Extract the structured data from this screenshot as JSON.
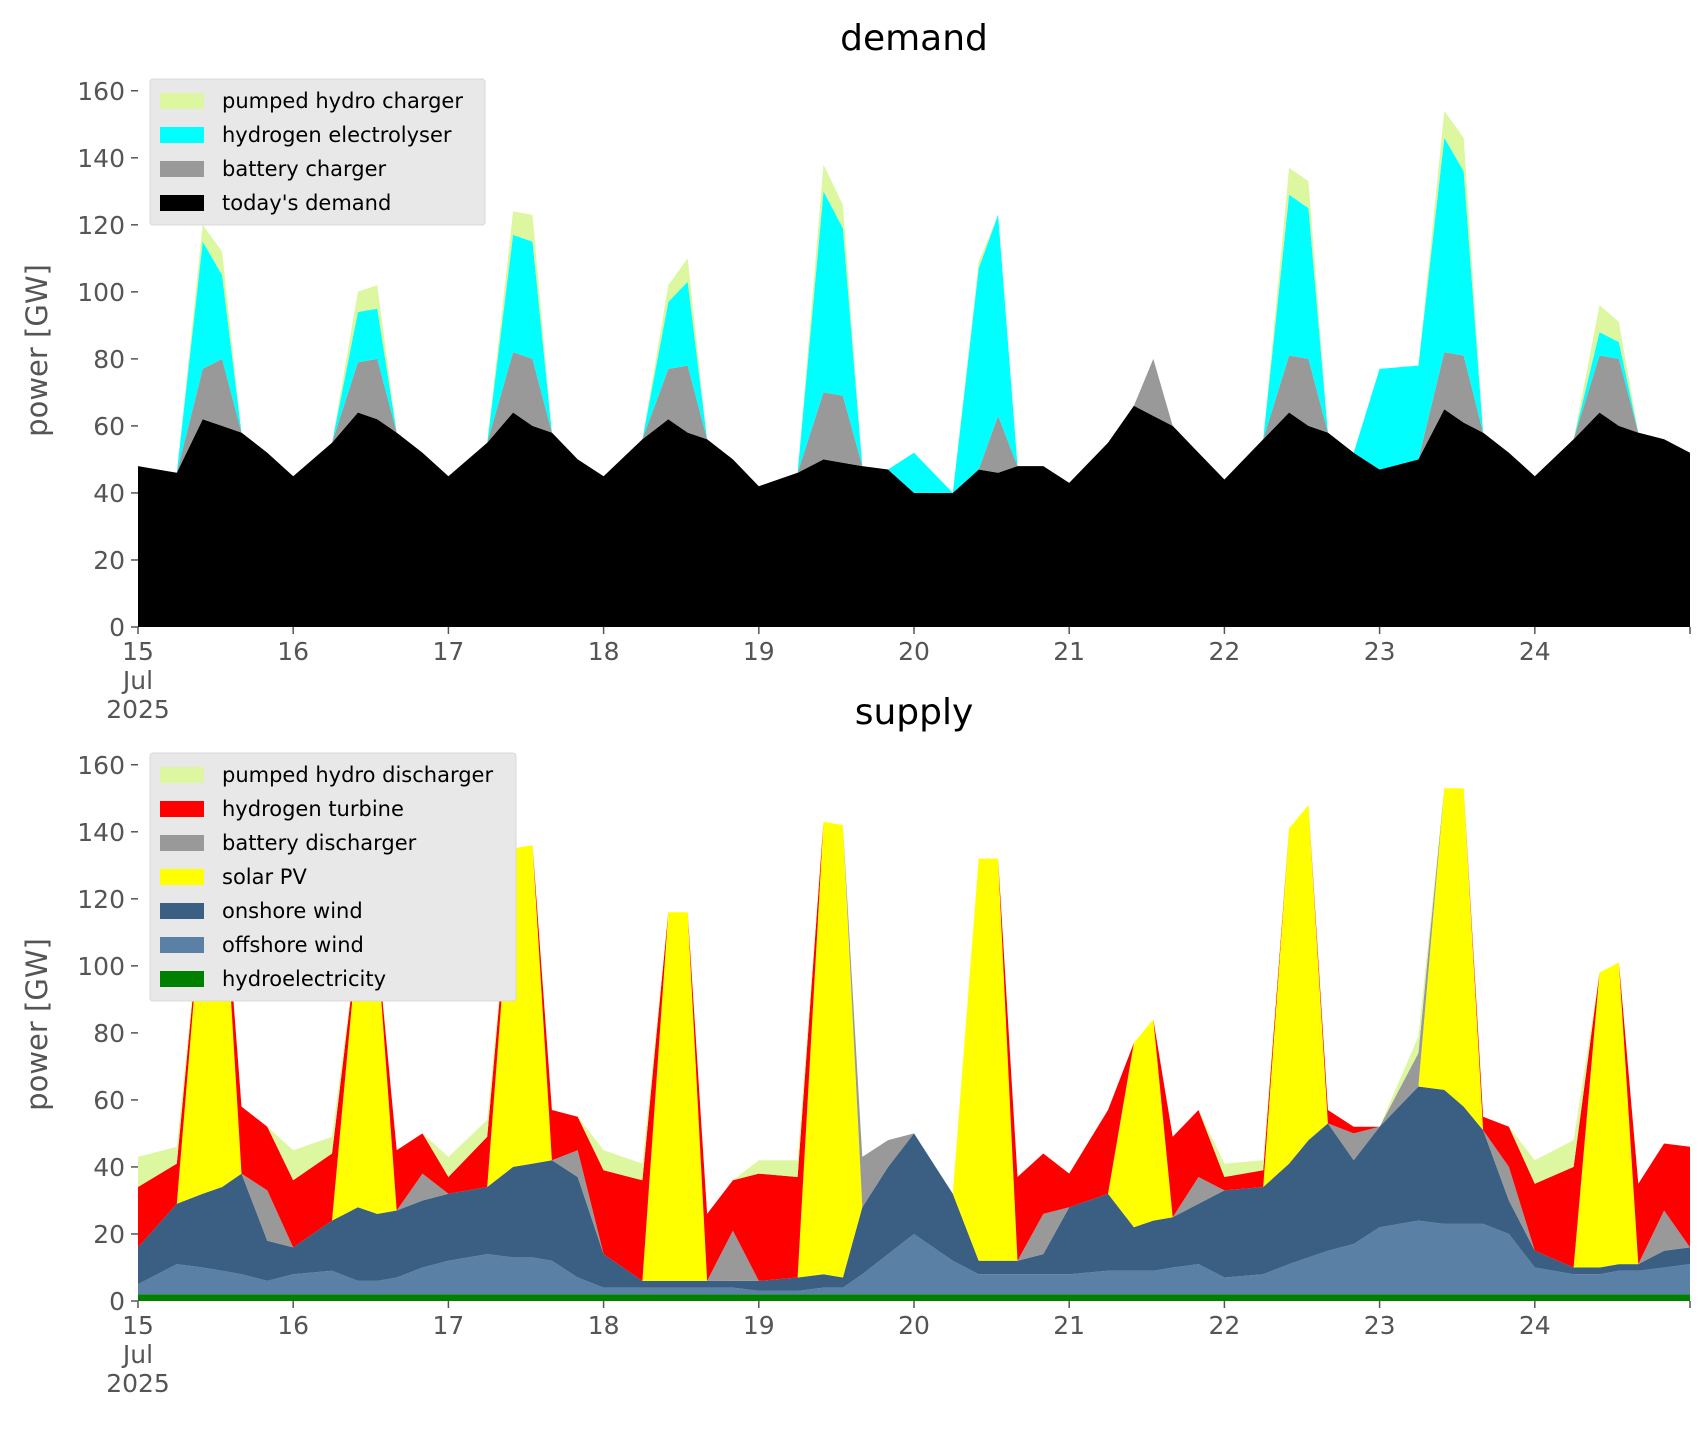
{
  "chart_data": [
    {
      "type": "area",
      "stacked": true,
      "title": "demand",
      "ylabel": "power [GW]",
      "xlabel": "",
      "ylim": [
        0,
        165
      ],
      "yticks": [
        0,
        20,
        40,
        60,
        80,
        100,
        120,
        140,
        160
      ],
      "xlim": [
        "2025-07-15 00:00",
        "2025-07-25 00:00"
      ],
      "xticks": [
        {
          "date": "2025-07-15",
          "lines": [
            "15",
            "Jul",
            "2025"
          ]
        },
        {
          "date": "2025-07-16",
          "lines": [
            "16"
          ]
        },
        {
          "date": "2025-07-17",
          "lines": [
            "17"
          ]
        },
        {
          "date": "2025-07-18",
          "lines": [
            "18"
          ]
        },
        {
          "date": "2025-07-19",
          "lines": [
            "19"
          ]
        },
        {
          "date": "2025-07-20",
          "lines": [
            "20"
          ]
        },
        {
          "date": "2025-07-21",
          "lines": [
            "21"
          ]
        },
        {
          "date": "2025-07-22",
          "lines": [
            "22"
          ]
        },
        {
          "date": "2025-07-23",
          "lines": [
            "23"
          ]
        },
        {
          "date": "2025-07-24",
          "lines": [
            "24"
          ]
        }
      ],
      "grid": false,
      "legend_position": "top-left",
      "x": [
        "2025-07-15 00:00",
        "2025-07-15 06:00",
        "2025-07-15 10:00",
        "2025-07-15 13:00",
        "2025-07-15 16:00",
        "2025-07-15 20:00",
        "2025-07-16 00:00",
        "2025-07-16 06:00",
        "2025-07-16 10:00",
        "2025-07-16 13:00",
        "2025-07-16 16:00",
        "2025-07-16 20:00",
        "2025-07-17 00:00",
        "2025-07-17 06:00",
        "2025-07-17 10:00",
        "2025-07-17 13:00",
        "2025-07-17 16:00",
        "2025-07-17 20:00",
        "2025-07-18 00:00",
        "2025-07-18 06:00",
        "2025-07-18 10:00",
        "2025-07-18 13:00",
        "2025-07-18 16:00",
        "2025-07-18 20:00",
        "2025-07-19 00:00",
        "2025-07-19 06:00",
        "2025-07-19 10:00",
        "2025-07-19 13:00",
        "2025-07-19 16:00",
        "2025-07-19 20:00",
        "2025-07-20 00:00",
        "2025-07-20 06:00",
        "2025-07-20 10:00",
        "2025-07-20 13:00",
        "2025-07-20 16:00",
        "2025-07-20 20:00",
        "2025-07-21 00:00",
        "2025-07-21 06:00",
        "2025-07-21 10:00",
        "2025-07-21 13:00",
        "2025-07-21 16:00",
        "2025-07-21 20:00",
        "2025-07-22 00:00",
        "2025-07-22 06:00",
        "2025-07-22 10:00",
        "2025-07-22 13:00",
        "2025-07-22 16:00",
        "2025-07-22 20:00",
        "2025-07-23 00:00",
        "2025-07-23 06:00",
        "2025-07-23 10:00",
        "2025-07-23 13:00",
        "2025-07-23 16:00",
        "2025-07-23 20:00",
        "2025-07-24 00:00",
        "2025-07-24 06:00",
        "2025-07-24 10:00",
        "2025-07-24 13:00",
        "2025-07-24 16:00",
        "2025-07-24 20:00",
        "2025-07-25 00:00"
      ],
      "series": [
        {
          "name": "today's demand",
          "color": "#000000",
          "values": [
            48,
            46,
            62,
            60,
            58,
            52,
            45,
            55,
            64,
            62,
            58,
            52,
            45,
            55,
            64,
            60,
            58,
            50,
            45,
            56,
            62,
            58,
            56,
            50,
            42,
            46,
            50,
            49,
            48,
            47,
            40,
            40,
            47,
            46,
            48,
            48,
            43,
            55,
            66,
            63,
            60,
            52,
            44,
            56,
            64,
            60,
            58,
            52,
            47,
            50,
            65,
            61,
            58,
            52,
            45,
            56,
            64,
            60,
            58,
            56,
            52
          ]
        },
        {
          "name": "battery charger",
          "color": "#999999",
          "values": [
            0,
            0,
            15,
            20,
            0,
            0,
            0,
            0,
            15,
            18,
            0,
            0,
            0,
            0,
            18,
            20,
            0,
            0,
            0,
            0,
            15,
            20,
            0,
            0,
            0,
            0,
            20,
            20,
            0,
            0,
            0,
            0,
            0,
            17,
            0,
            0,
            0,
            0,
            0,
            17,
            0,
            0,
            0,
            0,
            17,
            20,
            0,
            0,
            0,
            0,
            17,
            20,
            0,
            0,
            0,
            0,
            17,
            20,
            0,
            0,
            0
          ]
        },
        {
          "name": "hydrogen electrolyser",
          "color": "#00ffff",
          "values": [
            0,
            0,
            38,
            25,
            0,
            0,
            0,
            0,
            15,
            15,
            0,
            0,
            0,
            0,
            35,
            35,
            0,
            0,
            0,
            0,
            20,
            25,
            0,
            0,
            0,
            0,
            60,
            50,
            0,
            0,
            12,
            0,
            60,
            60,
            0,
            0,
            0,
            0,
            0,
            0,
            0,
            0,
            0,
            0,
            48,
            45,
            0,
            0,
            30,
            28,
            64,
            55,
            0,
            0,
            0,
            0,
            7,
            5,
            0,
            0,
            0
          ]
        },
        {
          "name": "pumped hydro charger",
          "color": "#ddf7a1",
          "values": [
            0,
            0,
            5,
            7,
            0,
            0,
            0,
            0,
            6,
            7,
            0,
            0,
            0,
            0,
            7,
            8,
            0,
            0,
            0,
            0,
            5,
            7,
            0,
            0,
            0,
            0,
            8,
            7,
            0,
            0,
            0,
            0,
            2,
            0,
            0,
            0,
            0,
            0,
            0,
            0,
            0,
            0,
            0,
            0,
            8,
            8,
            0,
            0,
            0,
            0,
            8,
            10,
            0,
            0,
            0,
            0,
            8,
            6,
            0,
            0,
            0
          ]
        }
      ]
    },
    {
      "type": "area",
      "stacked": true,
      "title": "supply",
      "ylabel": "power [GW]",
      "xlabel": "",
      "ylim": [
        0,
        165
      ],
      "yticks": [
        0,
        20,
        40,
        60,
        80,
        100,
        120,
        140,
        160
      ],
      "xlim": [
        "2025-07-15 00:00",
        "2025-07-25 00:00"
      ],
      "xticks": [
        {
          "date": "2025-07-15",
          "lines": [
            "15",
            "Jul",
            "2025"
          ]
        },
        {
          "date": "2025-07-16",
          "lines": [
            "16"
          ]
        },
        {
          "date": "2025-07-17",
          "lines": [
            "17"
          ]
        },
        {
          "date": "2025-07-18",
          "lines": [
            "18"
          ]
        },
        {
          "date": "2025-07-19",
          "lines": [
            "19"
          ]
        },
        {
          "date": "2025-07-20",
          "lines": [
            "20"
          ]
        },
        {
          "date": "2025-07-21",
          "lines": [
            "21"
          ]
        },
        {
          "date": "2025-07-22",
          "lines": [
            "22"
          ]
        },
        {
          "date": "2025-07-23",
          "lines": [
            "23"
          ]
        },
        {
          "date": "2025-07-24",
          "lines": [
            "24"
          ]
        }
      ],
      "grid": false,
      "legend_position": "top-left",
      "x": [
        "2025-07-15 00:00",
        "2025-07-15 06:00",
        "2025-07-15 10:00",
        "2025-07-15 13:00",
        "2025-07-15 16:00",
        "2025-07-15 20:00",
        "2025-07-16 00:00",
        "2025-07-16 06:00",
        "2025-07-16 10:00",
        "2025-07-16 13:00",
        "2025-07-16 16:00",
        "2025-07-16 20:00",
        "2025-07-17 00:00",
        "2025-07-17 06:00",
        "2025-07-17 10:00",
        "2025-07-17 13:00",
        "2025-07-17 16:00",
        "2025-07-17 20:00",
        "2025-07-18 00:00",
        "2025-07-18 06:00",
        "2025-07-18 10:00",
        "2025-07-18 13:00",
        "2025-07-18 16:00",
        "2025-07-18 20:00",
        "2025-07-19 00:00",
        "2025-07-19 06:00",
        "2025-07-19 10:00",
        "2025-07-19 13:00",
        "2025-07-19 16:00",
        "2025-07-19 20:00",
        "2025-07-20 00:00",
        "2025-07-20 06:00",
        "2025-07-20 10:00",
        "2025-07-20 13:00",
        "2025-07-20 16:00",
        "2025-07-20 20:00",
        "2025-07-21 00:00",
        "2025-07-21 06:00",
        "2025-07-21 10:00",
        "2025-07-21 13:00",
        "2025-07-21 16:00",
        "2025-07-21 20:00",
        "2025-07-22 00:00",
        "2025-07-22 06:00",
        "2025-07-22 10:00",
        "2025-07-22 13:00",
        "2025-07-22 16:00",
        "2025-07-22 20:00",
        "2025-07-23 00:00",
        "2025-07-23 06:00",
        "2025-07-23 10:00",
        "2025-07-23 13:00",
        "2025-07-23 16:00",
        "2025-07-23 20:00",
        "2025-07-24 00:00",
        "2025-07-24 06:00",
        "2025-07-24 10:00",
        "2025-07-24 13:00",
        "2025-07-24 16:00",
        "2025-07-24 20:00",
        "2025-07-25 00:00"
      ],
      "series": [
        {
          "name": "hydroelectricity",
          "color": "#008000",
          "values": [
            2,
            2,
            2,
            2,
            2,
            2,
            2,
            2,
            2,
            2,
            2,
            2,
            2,
            2,
            2,
            2,
            2,
            2,
            2,
            2,
            2,
            2,
            2,
            2,
            2,
            2,
            2,
            2,
            2,
            2,
            2,
            2,
            2,
            2,
            2,
            2,
            2,
            2,
            2,
            2,
            2,
            2,
            2,
            2,
            2,
            2,
            2,
            2,
            2,
            2,
            2,
            2,
            2,
            2,
            2,
            2,
            2,
            2,
            2,
            2,
            2
          ]
        },
        {
          "name": "offshore wind",
          "color": "#5b80a5",
          "values": [
            3,
            9,
            8,
            7,
            6,
            4,
            6,
            7,
            4,
            4,
            5,
            8,
            10,
            12,
            11,
            11,
            10,
            5,
            2,
            2,
            2,
            2,
            2,
            2,
            1,
            1,
            2,
            2,
            6,
            12,
            18,
            10,
            6,
            6,
            6,
            6,
            6,
            7,
            7,
            7,
            8,
            9,
            5,
            6,
            9,
            11,
            13,
            15,
            20,
            22,
            21,
            21,
            21,
            18,
            8,
            6,
            6,
            7,
            7,
            8,
            9
          ]
        },
        {
          "name": "onshore wind",
          "color": "#3a5f82",
          "values": [
            11,
            18,
            22,
            25,
            30,
            12,
            8,
            15,
            22,
            20,
            20,
            20,
            20,
            20,
            27,
            28,
            30,
            30,
            10,
            2,
            2,
            2,
            2,
            2,
            3,
            4,
            4,
            3,
            20,
            26,
            30,
            20,
            4,
            4,
            4,
            6,
            20,
            23,
            13,
            15,
            15,
            18,
            26,
            26,
            30,
            35,
            38,
            25,
            30,
            40,
            40,
            35,
            28,
            10,
            5,
            2,
            2,
            2,
            2,
            5,
            5
          ]
        },
        {
          "name": "solar PV",
          "color": "#ffff00",
          "values": [
            0,
            0,
            90,
            100,
            0,
            0,
            0,
            0,
            80,
            80,
            0,
            0,
            0,
            0,
            95,
            95,
            0,
            0,
            0,
            0,
            110,
            110,
            0,
            0,
            0,
            0,
            135,
            135,
            0,
            0,
            0,
            0,
            120,
            120,
            0,
            0,
            0,
            0,
            55,
            60,
            0,
            0,
            0,
            0,
            100,
            100,
            0,
            0,
            0,
            0,
            90,
            95,
            0,
            0,
            0,
            0,
            88,
            90,
            0,
            0,
            0
          ]
        },
        {
          "name": "battery discharger",
          "color": "#999999",
          "values": [
            0,
            0,
            0,
            0,
            0,
            15,
            0,
            0,
            0,
            0,
            0,
            8,
            0,
            0,
            0,
            0,
            0,
            8,
            0,
            0,
            0,
            0,
            0,
            15,
            0,
            0,
            0,
            0,
            15,
            8,
            0,
            0,
            0,
            0,
            0,
            12,
            0,
            0,
            0,
            0,
            0,
            8,
            0,
            0,
            0,
            0,
            0,
            8,
            0,
            10,
            0,
            0,
            0,
            10,
            0,
            0,
            0,
            0,
            0,
            12,
            0
          ]
        },
        {
          "name": "hydrogen turbine",
          "color": "#ff0000",
          "values": [
            18,
            12,
            0,
            0,
            20,
            19,
            20,
            20,
            0,
            0,
            18,
            12,
            5,
            15,
            0,
            0,
            15,
            10,
            25,
            30,
            0,
            0,
            20,
            15,
            32,
            30,
            0,
            0,
            0,
            0,
            0,
            0,
            0,
            0,
            25,
            18,
            10,
            25,
            0,
            0,
            24,
            20,
            4,
            5,
            0,
            0,
            4,
            2,
            0,
            0,
            0,
            0,
            4,
            12,
            20,
            30,
            0,
            0,
            24,
            20,
            30
          ]
        },
        {
          "name": "pumped hydro discharger",
          "color": "#ddf7a1",
          "values": [
            9,
            5,
            0,
            0,
            0,
            0,
            9,
            5,
            0,
            0,
            0,
            0,
            6,
            5,
            0,
            0,
            0,
            0,
            6,
            5,
            0,
            0,
            0,
            0,
            4,
            5,
            0,
            0,
            0,
            0,
            0,
            0,
            0,
            0,
            0,
            0,
            0,
            0,
            0,
            0,
            0,
            0,
            4,
            3,
            0,
            0,
            0,
            0,
            0,
            5,
            0,
            0,
            0,
            0,
            7,
            8,
            0,
            0,
            0,
            0,
            0
          ]
        }
      ]
    }
  ]
}
